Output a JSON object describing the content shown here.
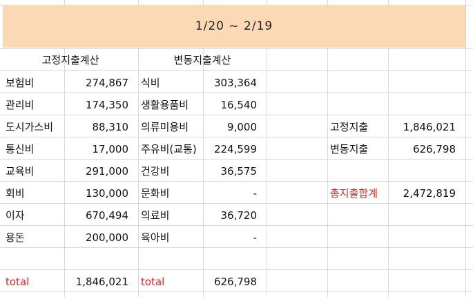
{
  "banner": {
    "title": "1/20 ~ 2/19"
  },
  "fixed": {
    "header": "고정지출계산",
    "rows": [
      {
        "label": "보험비",
        "value": "274,867"
      },
      {
        "label": "관리비",
        "value": "174,350"
      },
      {
        "label": "도시가스비",
        "value": "88,310"
      },
      {
        "label": "통신비",
        "value": "17,000"
      },
      {
        "label": "교육비",
        "value": "291,000"
      },
      {
        "label": "회비",
        "value": "130,000"
      },
      {
        "label": "이자",
        "value": "670,494"
      },
      {
        "label": "용돈",
        "value": "200,000"
      }
    ],
    "total_label": "total",
    "total_value": "1,846,021"
  },
  "variable": {
    "header": "변동지출계산",
    "rows": [
      {
        "label": "식비",
        "value": "303,364"
      },
      {
        "label": "생활용품비",
        "value": "16,540"
      },
      {
        "label": "의류미용비",
        "value": "9,000"
      },
      {
        "label": "주유비(교통)",
        "value": "224,599"
      },
      {
        "label": "건강비",
        "value": "36,575"
      },
      {
        "label": "문화비",
        "value": "-"
      },
      {
        "label": "의료비",
        "value": "36,720"
      },
      {
        "label": "육아비",
        "value": "-"
      }
    ],
    "total_label": "total",
    "total_value": "626,798"
  },
  "summary": {
    "fixed_label": "고정지출",
    "fixed_value": "1,846,021",
    "variable_label": "변동지출",
    "variable_value": "626,798",
    "total_label": "총지출합계",
    "total_value": "2,472,819"
  },
  "colors": {
    "banner": "#fbd9b4",
    "accent_red": "#e02020",
    "grid": "#d9d9d9"
  }
}
